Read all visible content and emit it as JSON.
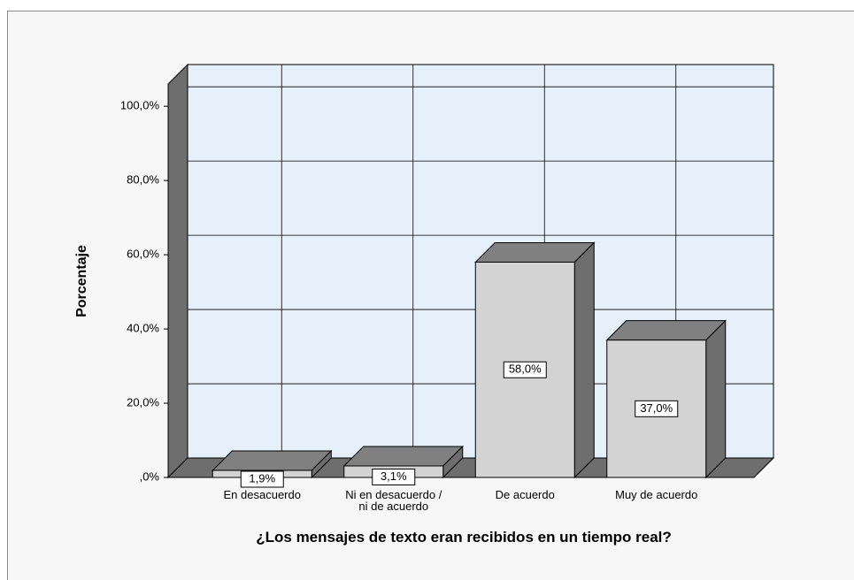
{
  "chart_data": {
    "type": "bar3d",
    "y_label": "Porcentaje",
    "x_label": "¿Los mensajes de texto eran recibidos en un tiempo real?",
    "categories": [
      "En desacuerdo",
      "Ni en desacuerdo / ni de acuerdo",
      "De acuerdo",
      "Muy de acuerdo"
    ],
    "values": [
      1.9,
      3.1,
      58,
      37
    ],
    "value_labels": [
      "1,9%",
      "3,1%",
      "58,0%",
      "37,0%"
    ],
    "color": "#d3d3d3",
    "ylim": [
      0,
      106
    ],
    "yticks": [
      {
        "value": 0,
        "label": ",0%"
      },
      {
        "value": 20,
        "label": "20,0%"
      },
      {
        "value": 40,
        "label": "40,0%"
      },
      {
        "value": 60,
        "label": "60,0%"
      },
      {
        "value": 80,
        "label": "80,0%"
      },
      {
        "value": 100,
        "label": "100,0%"
      }
    ],
    "grid": true
  }
}
